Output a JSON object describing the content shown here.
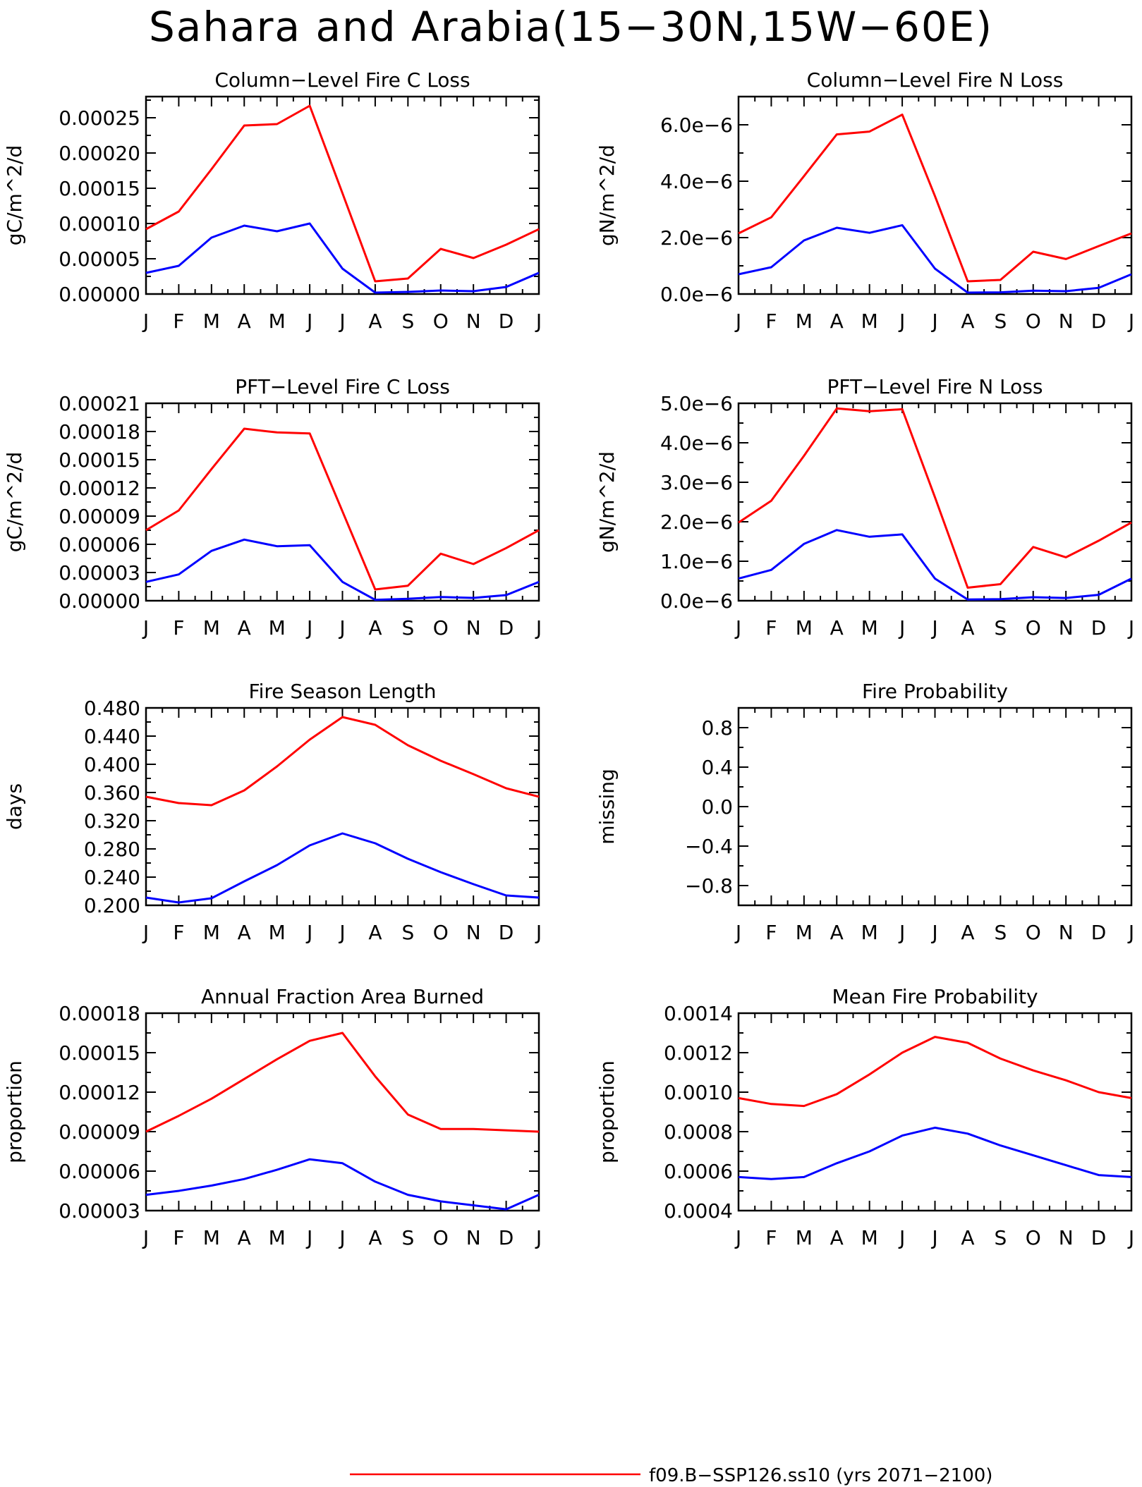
{
  "page_title": "Sahara and Arabia(15−30N,15W−60E)",
  "colors": {
    "series_red": "#ff0000",
    "series_blue": "#0000ff",
    "axis": "#000000"
  },
  "months": [
    "J",
    "F",
    "M",
    "A",
    "M",
    "J",
    "J",
    "A",
    "S",
    "O",
    "N",
    "D",
    "J"
  ],
  "legend": [
    {
      "label": "f09.B−SSP126.ss10 (yrs 2071−2100)",
      "color": "#ff0000"
    }
  ],
  "chart_data": [
    {
      "type": "line",
      "title": "Column−Level Fire C Loss",
      "ylabel": "gC/m^2/d",
      "ylim": [
        0,
        0.00028
      ],
      "yticks": [
        0,
        5e-05,
        0.0001,
        0.00015,
        0.0002,
        0.00025
      ],
      "ytick_labels": [
        "0.00000",
        "0.00005",
        "0.00010",
        "0.00015",
        "0.00020",
        "0.00025"
      ],
      "series": [
        {
          "color": "#ff0000",
          "values": [
            9.2e-05,
            0.000117,
            0.000177,
            0.000239,
            0.000241,
            0.000267,
            0.000143,
            1.8e-05,
            2.2e-05,
            6.4e-05,
            5.1e-05,
            7e-05,
            9.2e-05
          ]
        },
        {
          "color": "#0000ff",
          "values": [
            3e-05,
            4e-05,
            8e-05,
            9.7e-05,
            8.9e-05,
            0.0001,
            3.6e-05,
            2e-06,
            3e-06,
            5e-06,
            4e-06,
            1e-05,
            3e-05
          ]
        }
      ]
    },
    {
      "type": "line",
      "title": "Column−Level Fire N Loss",
      "ylabel": "gN/m^2/d",
      "ylim": [
        0,
        7e-06
      ],
      "yticks": [
        0,
        2e-06,
        4e-06,
        6e-06
      ],
      "ytick_labels": [
        "0.0e−6",
        "2.0e−6",
        "4.0e−6",
        "6.0e−6"
      ],
      "series": [
        {
          "color": "#ff0000",
          "values": [
            2.15e-06,
            2.72e-06,
            4.18e-06,
            5.66e-06,
            5.76e-06,
            6.36e-06,
            3.47e-06,
            4.5e-07,
            5e-07,
            1.5e-06,
            1.24e-06,
            1.7e-06,
            2.15e-06
          ]
        },
        {
          "color": "#0000ff",
          "values": [
            7e-07,
            9.5e-07,
            1.9e-06,
            2.35e-06,
            2.17e-06,
            2.44e-06,
            9e-07,
            5e-08,
            6e-08,
            1.2e-07,
            1e-07,
            2.2e-07,
            7e-07
          ]
        }
      ]
    },
    {
      "type": "line",
      "title": "PFT−Level Fire C Loss",
      "ylabel": "gC/m^2/d",
      "ylim": [
        0,
        0.00021
      ],
      "yticks": [
        0,
        3e-05,
        6e-05,
        9e-05,
        0.00012,
        0.00015,
        0.00018,
        0.00021
      ],
      "ytick_labels": [
        "0.00000",
        "0.00003",
        "0.00006",
        "0.00009",
        "0.00012",
        "0.00015",
        "0.00018",
        "0.00021"
      ],
      "series": [
        {
          "color": "#ff0000",
          "values": [
            7.5e-05,
            9.6e-05,
            0.00014,
            0.000183,
            0.000179,
            0.000178,
            9.5e-05,
            1.2e-05,
            1.6e-05,
            5e-05,
            3.9e-05,
            5.6e-05,
            7.5e-05
          ]
        },
        {
          "color": "#0000ff",
          "values": [
            2e-05,
            2.8e-05,
            5.3e-05,
            6.5e-05,
            5.8e-05,
            5.9e-05,
            2e-05,
            1e-06,
            2e-06,
            4e-06,
            3e-06,
            6e-06,
            2e-05
          ]
        }
      ]
    },
    {
      "type": "line",
      "title": "PFT−Level Fire N Loss",
      "ylabel": "gN/m^2/d",
      "ylim": [
        0,
        5e-06
      ],
      "yticks": [
        0,
        1e-06,
        2e-06,
        3e-06,
        4e-06,
        5e-06
      ],
      "ytick_labels": [
        "0.0e−6",
        "1.0e−6",
        "2.0e−6",
        "3.0e−6",
        "4.0e−6",
        "5.0e−6"
      ],
      "series": [
        {
          "color": "#ff0000",
          "values": [
            1.98e-06,
            2.53e-06,
            3.67e-06,
            4.87e-06,
            4.8e-06,
            4.85e-06,
            2.62e-06,
            3.3e-07,
            4.2e-07,
            1.36e-06,
            1.1e-06,
            1.52e-06,
            1.98e-06
          ]
        },
        {
          "color": "#0000ff",
          "values": [
            5.6e-07,
            7.8e-07,
            1.44e-06,
            1.79e-06,
            1.62e-06,
            1.68e-06,
            5.6e-07,
            3e-08,
            4e-08,
            9e-08,
            7e-08,
            1.5e-07,
            5.6e-07
          ]
        }
      ]
    },
    {
      "type": "line",
      "title": "Fire Season Length",
      "ylabel": "days",
      "ylim": [
        0.2,
        0.48
      ],
      "yticks": [
        0.2,
        0.24,
        0.28,
        0.32,
        0.36,
        0.4,
        0.44,
        0.48
      ],
      "ytick_labels": [
        "0.200",
        "0.240",
        "0.280",
        "0.320",
        "0.360",
        "0.400",
        "0.440",
        "0.480"
      ],
      "series": [
        {
          "color": "#ff0000",
          "values": [
            0.354,
            0.345,
            0.342,
            0.363,
            0.397,
            0.435,
            0.467,
            0.456,
            0.427,
            0.405,
            0.386,
            0.366,
            0.354
          ]
        },
        {
          "color": "#0000ff",
          "values": [
            0.211,
            0.204,
            0.21,
            0.234,
            0.257,
            0.285,
            0.302,
            0.288,
            0.266,
            0.247,
            0.23,
            0.214,
            0.211
          ]
        }
      ]
    },
    {
      "type": "line",
      "title": "Fire Probability",
      "ylabel": "missing",
      "ylim": [
        -1,
        1
      ],
      "yticks": [
        -0.8,
        -0.4,
        0,
        0.4,
        0.8
      ],
      "ytick_labels": [
        "−0.8",
        "−0.4",
        "0.0",
        "0.4",
        "0.8"
      ],
      "series": []
    },
    {
      "type": "line",
      "title": "Annual Fraction Area Burned",
      "ylabel": "proportion",
      "ylim": [
        3e-05,
        0.00018
      ],
      "yticks": [
        3e-05,
        6e-05,
        9e-05,
        0.00012,
        0.00015,
        0.00018
      ],
      "ytick_labels": [
        "0.00003",
        "0.00006",
        "0.00009",
        "0.00012",
        "0.00015",
        "0.00018"
      ],
      "series": [
        {
          "color": "#ff0000",
          "values": [
            9e-05,
            0.000102,
            0.000115,
            0.00013,
            0.000145,
            0.000159,
            0.000165,
            0.000132,
            0.000103,
            9.2e-05,
            9.2e-05,
            9.1e-05,
            9e-05
          ]
        },
        {
          "color": "#0000ff",
          "values": [
            4.2e-05,
            4.5e-05,
            4.9e-05,
            5.4e-05,
            6.1e-05,
            6.9e-05,
            6.6e-05,
            5.2e-05,
            4.2e-05,
            3.7e-05,
            3.4e-05,
            3.1e-05,
            4.2e-05
          ]
        }
      ]
    },
    {
      "type": "line",
      "title": "Mean Fire Probability",
      "ylabel": "proportion",
      "ylim": [
        0.0004,
        0.0014
      ],
      "yticks": [
        0.0004,
        0.0006,
        0.0008,
        0.001,
        0.0012,
        0.0014
      ],
      "ytick_labels": [
        "0.0004",
        "0.0006",
        "0.0008",
        "0.0010",
        "0.0012",
        "0.0014"
      ],
      "series": [
        {
          "color": "#ff0000",
          "values": [
            0.00097,
            0.00094,
            0.00093,
            0.00099,
            0.00109,
            0.0012,
            0.00128,
            0.00125,
            0.00117,
            0.00111,
            0.00106,
            0.001,
            0.00097
          ]
        },
        {
          "color": "#0000ff",
          "values": [
            0.00057,
            0.00056,
            0.00057,
            0.00064,
            0.0007,
            0.00078,
            0.00082,
            0.00079,
            0.00073,
            0.00068,
            0.00063,
            0.00058,
            0.00057
          ]
        }
      ]
    }
  ]
}
